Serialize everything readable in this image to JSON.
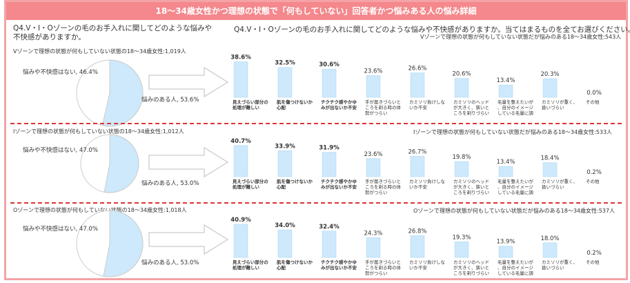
{
  "title": "18～34歳女性かつ理想の状態で「何もしていない」回答者かつ悩みある人の悩み詳細",
  "question_left": "Q4.V・I・Oゾーンの毛のお手入れに関してどのような悩みや不快感がありますか。",
  "question_right": "Q4.V・I・Oゾーンの毛のお手入れに関してどのような悩みや不快感がありますか。当てはまるものを全てお選びください。",
  "colors": {
    "bar": "#cde9fb",
    "bar_stroke": "#a7d4f2",
    "title_bg": "#f4888c",
    "frame": "#f4a3a6",
    "separator": "#dd3333",
    "pie_fill": "#cde9fb"
  },
  "categories": [
    "見えづらい部分の処理が難しい",
    "肌を傷つけないか心配",
    "チクチク感やかゆみが出ないか不安",
    "手が届きづらいところを剃る時の体勢がつらい",
    "カミソリ負けしないか不安",
    "カミソリのヘッドが大きく、狭いところを剃りづらい",
    "毛量を整えたいが、自分のイメージしている毛量に調整しづらい",
    "カミソリが重く、扱いづらい",
    "その他"
  ],
  "sections": [
    {
      "left_label": "Vゾーンで理想の状態が何もしていない状態の18～34歳女性:1,019人",
      "right_label": "Vゾーンで理想の状態が何もしていない状態だが悩みのある18～34歳女性:543人",
      "pie": {
        "no_concern_label": "悩みや不快感はない, 46.4%",
        "concern_label": "悩みのある人, 53.6%",
        "no_concern": 46.4,
        "concern": 53.6
      },
      "values": [
        38.6,
        32.5,
        30.6,
        23.6,
        26.6,
        20.6,
        13.4,
        20.3,
        0.0
      ],
      "value_labels": [
        "38.6%",
        "32.5%",
        "30.6%",
        "23.6%",
        "26.6%",
        "20.6%",
        "13.4%",
        "20.3%",
        "0.0%"
      ]
    },
    {
      "left_label": "Iゾーンで理想の状態が何もしていない状態の18～34歳女性:1,012人",
      "right_label": "Iゾーンで理想の状態が何もしていない状態だが悩みのある18～34歳女性:533人",
      "pie": {
        "no_concern_label": "悩みや不快感はない, 47.0%",
        "concern_label": "悩みのある人, 53.0%",
        "no_concern": 47.0,
        "concern": 53.0
      },
      "values": [
        40.7,
        33.9,
        31.9,
        23.6,
        26.7,
        19.8,
        13.4,
        18.4,
        0.2
      ],
      "value_labels": [
        "40.7%",
        "33.9%",
        "31.9%",
        "23.6%",
        "26.7%",
        "19.8%",
        "13.4%",
        "18.4%",
        "0.2%"
      ]
    },
    {
      "left_label": "Oゾーンで理想の状態が何もしていない状態の18～34歳女性:1,018人",
      "right_label": "Oゾーンで理想の状態が何もしていない状態だが悩みのある18～34歳女性:537人",
      "pie": {
        "no_concern_label": "悩みや不快感はない, 47.0%",
        "concern_label": "悩みのある人, 53.0%",
        "no_concern": 47.0,
        "concern": 53.0
      },
      "values": [
        40.9,
        34.0,
        32.4,
        24.3,
        26.8,
        19.3,
        13.9,
        18.0,
        0.2
      ],
      "value_labels": [
        "40.9%",
        "34.0%",
        "32.4%",
        "24.3%",
        "26.8%",
        "19.3%",
        "13.9%",
        "18.0%",
        "0.2%"
      ]
    }
  ],
  "chart_data": [
    {
      "type": "bar",
      "categories": [
        "見えづらい部分の処理が難しい",
        "肌を傷つけないか心配",
        "チクチク感やかゆみが出ないか不安",
        "手が届きづらいところを剃る時の体勢がつらい",
        "カミソリ負けしないか不安",
        "カミソリのヘッドが大きく、狭いところを剃りづらい",
        "毛量を整えたいが、自分のイメージしている毛量に調整しづらい",
        "カミソリが重く、扱いづらい",
        "その他"
      ],
      "values": [
        38.6,
        32.5,
        30.6,
        23.6,
        26.6,
        20.6,
        13.4,
        20.3,
        0.0
      ],
      "title": "Vゾーンで理想の状態が何もしていない状態だが悩みのある18～34歳女性:543人"
    },
    {
      "type": "bar",
      "categories": [
        "見えづらい部分の処理が難しい",
        "肌を傷つけないか心配",
        "チクチク感やかゆみが出ないか不安",
        "手が届きづらいところを剃る時の体勢がつらい",
        "カミソリ負けしないか不安",
        "カミソリのヘッドが大きく、狭いところを剃りづらい",
        "毛量を整えたいが、自分のイメージしている毛量に調整しづらい",
        "カミソリが重く、扱いづらい",
        "その他"
      ],
      "values": [
        40.7,
        33.9,
        31.9,
        23.6,
        26.7,
        19.8,
        13.4,
        18.4,
        0.2
      ],
      "title": "Iゾーンで理想の状態が何もしていない状態だが悩みのある18～34歳女性:533人"
    },
    {
      "type": "bar",
      "categories": [
        "見えづらい部分の処理が難しい",
        "肌を傷つけないか心配",
        "チクチク感やかゆみが出ないか不安",
        "手が届きづらいところを剃る時の体勢がつらい",
        "カミソリ負けしないか不安",
        "カミソリのヘッドが大きく、狭いところを剃りづらい",
        "毛量を整えたいが、自分のイメージしている毛量に調整しづらい",
        "カミソリが重く、扱いづらい",
        "その他"
      ],
      "values": [
        40.9,
        34.0,
        32.4,
        24.3,
        26.8,
        19.3,
        13.9,
        18.0,
        0.2
      ],
      "title": "Oゾーンで理想の状態が何もしていない状態だが悩みのある18～34歳女性:537人"
    },
    {
      "type": "pie",
      "title": "Vゾーンで理想の状態が何もしていない状態の18～34歳女性:1,019人",
      "categories": [
        "悩みや不快感はない",
        "悩みのある人"
      ],
      "values": [
        46.4,
        53.6
      ]
    },
    {
      "type": "pie",
      "title": "Iゾーンで理想の状態が何もしていない状態の18～34歳女性:1,012人",
      "categories": [
        "悩みや不快感はない",
        "悩みのある人"
      ],
      "values": [
        47.0,
        53.0
      ]
    },
    {
      "type": "pie",
      "title": "Oゾーンで理想の状態が何もしていない状態の18～34歳女性:1,018人",
      "categories": [
        "悩みや不快感はない",
        "悩みのある人"
      ],
      "values": [
        47.0,
        53.0
      ]
    }
  ]
}
